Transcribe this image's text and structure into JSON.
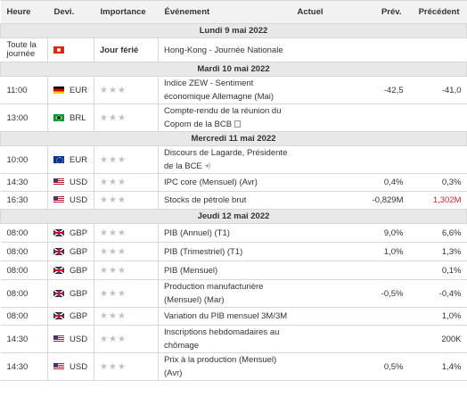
{
  "headers": {
    "time": "Heure",
    "currency": "Devi.",
    "importance": "Importance",
    "event": "Événement",
    "actual": "Actuel",
    "forecast": "Prév.",
    "previous": "Précédent"
  },
  "colors": {
    "header_bg": "#f2f2f2",
    "day_bg": "#e8e8e8",
    "star": "#c0c0c0",
    "negative_revision": "#e0242e"
  },
  "days": [
    {
      "label": "Lundi 9 mai 2022",
      "events": [
        {
          "time": "Toute la journée",
          "flag": "hk",
          "currency": "",
          "importance_text": "Jour férié",
          "event": "Hong-Kong - Journée Nationale",
          "actual": "",
          "forecast": "",
          "previous": ""
        }
      ]
    },
    {
      "label": "Mardi 10 mai 2022",
      "events": [
        {
          "time": "11:00",
          "flag": "de",
          "currency": "EUR",
          "importance": 3,
          "event": "Indice ZEW - Sentiment économique Allemagne (Mai)",
          "actual": "",
          "forecast": "-42,5",
          "previous": "-41,0"
        },
        {
          "time": "13:00",
          "flag": "br",
          "currency": "BRL",
          "importance": 3,
          "event": "Compte-rendu de la réunion du Copom de la BCB",
          "icon": "document-icon",
          "actual": "",
          "forecast": "",
          "previous": ""
        }
      ]
    },
    {
      "label": "Mercredi 11 mai 2022",
      "events": [
        {
          "time": "10:00",
          "flag": "eu",
          "currency": "EUR",
          "importance": 3,
          "event": "Discours de Lagarde, Présidente de la BCE",
          "icon": "speaker-icon",
          "actual": "",
          "forecast": "",
          "previous": ""
        },
        {
          "time": "14:30",
          "flag": "us",
          "currency": "USD",
          "importance": 3,
          "event": "IPC core (Mensuel) (Avr)",
          "actual": "",
          "forecast": "0,4%",
          "previous": "0,3%"
        },
        {
          "time": "16:30",
          "flag": "us",
          "currency": "USD",
          "importance": 3,
          "event": "Stocks de pétrole brut",
          "actual": "",
          "forecast": "-0,829M",
          "previous": "1,302M",
          "previous_color": "#e0242e"
        }
      ]
    },
    {
      "label": "Jeudi 12 mai 2022",
      "events": [
        {
          "time": "08:00",
          "flag": "gb",
          "currency": "GBP",
          "importance": 3,
          "event": "PIB (Annuel) (T1)",
          "actual": "",
          "forecast": "9,0%",
          "previous": "6,6%"
        },
        {
          "time": "08:00",
          "flag": "gb",
          "currency": "GBP",
          "importance": 3,
          "event": "PIB (Trimestriel) (T1)",
          "actual": "",
          "forecast": "1,0%",
          "previous": "1,3%"
        },
        {
          "time": "08:00",
          "flag": "gb",
          "currency": "GBP",
          "importance": 3,
          "event": "PIB (Mensuel)",
          "actual": "",
          "forecast": "",
          "previous": "0,1%"
        },
        {
          "time": "08:00",
          "flag": "gb",
          "currency": "GBP",
          "importance": 3,
          "event": "Production manufacturière (Mensuel) (Mar)",
          "actual": "",
          "forecast": "-0,5%",
          "previous": "-0,4%"
        },
        {
          "time": "08:00",
          "flag": "gb",
          "currency": "GBP",
          "importance": 3,
          "event": "Variation du PIB mensuel 3M/3M",
          "actual": "",
          "forecast": "",
          "previous": "1,0%"
        },
        {
          "time": "14:30",
          "flag": "us",
          "currency": "USD",
          "importance": 3,
          "event": "Inscriptions hebdomadaires au chômage",
          "actual": "",
          "forecast": "",
          "previous": "200K"
        },
        {
          "time": "14:30",
          "flag": "us",
          "currency": "USD",
          "importance": 3,
          "event": "Prix à la production (Mensuel) (Avr)",
          "actual": "",
          "forecast": "0,5%",
          "previous": "1,4%"
        }
      ]
    }
  ]
}
